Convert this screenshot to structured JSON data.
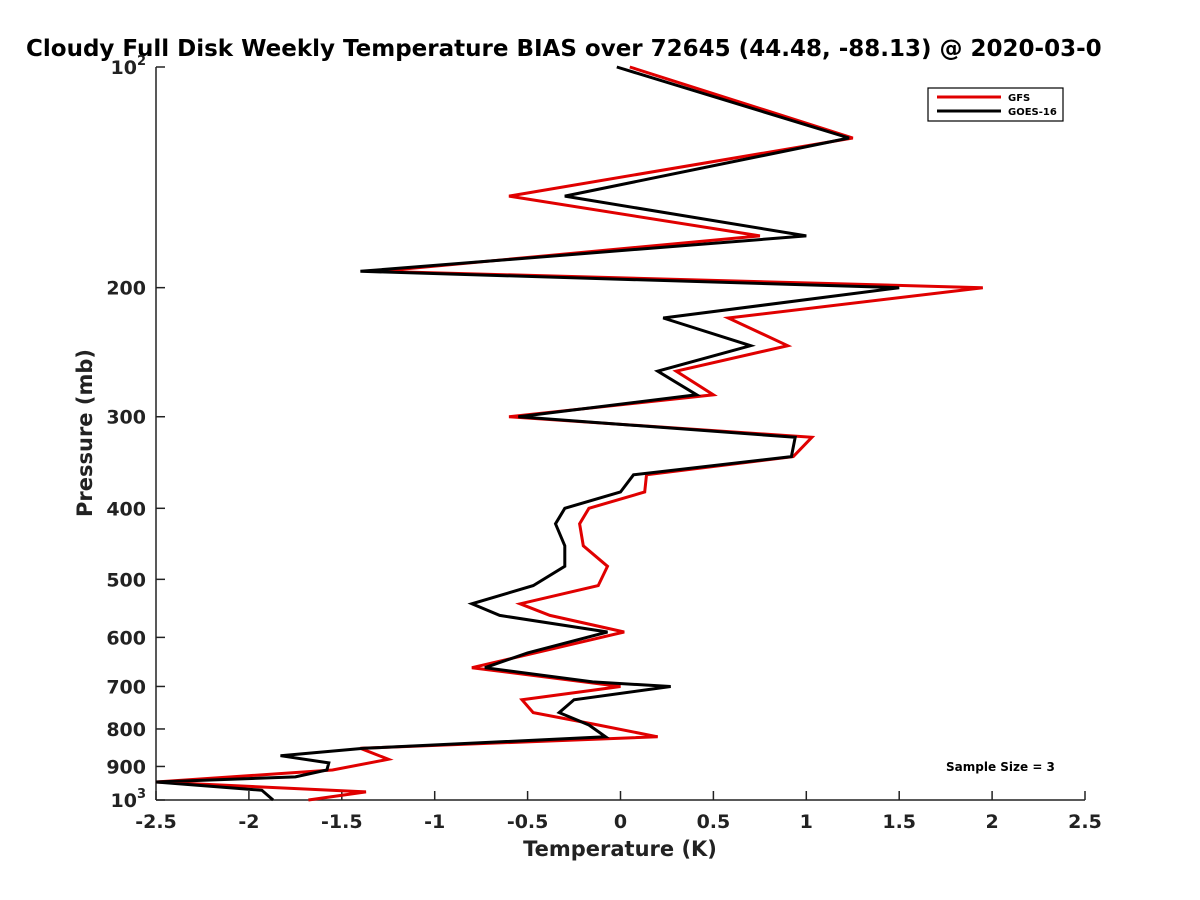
{
  "chart_data": {
    "type": "line",
    "title": "Cloudy Full Disk Weekly Temperature BIAS over 72645 (44.48, -88.13) @ 2020-03-0",
    "xlabel": "Temperature (K)",
    "ylabel": "Pressure (mb)",
    "xlim": [
      -2.5,
      2.5
    ],
    "ylim": [
      1000,
      100
    ],
    "y_scale": "log",
    "y_reversed": true,
    "grid": false,
    "legend_position": "top-right",
    "x_ticks": [
      "-2.5",
      "-2",
      "-1.5",
      "-1",
      "-0.5",
      "0",
      "0.5",
      "1",
      "1.5",
      "2",
      "2.5"
    ],
    "x_tick_values": [
      -2.5,
      -2,
      -1.5,
      -1,
      -0.5,
      0,
      0.5,
      1,
      1.5,
      2,
      2.5
    ],
    "y_ticks": [
      {
        "value": 100,
        "base": "10",
        "exp": "2"
      },
      {
        "value": 200,
        "label": "200"
      },
      {
        "value": 300,
        "label": "300"
      },
      {
        "value": 400,
        "label": "400"
      },
      {
        "value": 500,
        "label": "500"
      },
      {
        "value": 600,
        "label": "600"
      },
      {
        "value": 700,
        "label": "700"
      },
      {
        "value": 800,
        "label": "800"
      },
      {
        "value": 900,
        "label": "900"
      },
      {
        "value": 1000,
        "base": "10",
        "exp": "3"
      }
    ],
    "series": [
      {
        "name": "GFS",
        "color": "#e00000",
        "points": [
          [
            0.05,
            100
          ],
          [
            1.25,
            125
          ],
          [
            -0.6,
            150
          ],
          [
            0.75,
            170
          ],
          [
            -1.3,
            190
          ],
          [
            1.95,
            200
          ],
          [
            0.58,
            220
          ],
          [
            0.9,
            240
          ],
          [
            0.3,
            260
          ],
          [
            0.5,
            280
          ],
          [
            -0.6,
            300
          ],
          [
            1.03,
            320
          ],
          [
            0.93,
            340
          ],
          [
            0.14,
            360
          ],
          [
            0.13,
            380
          ],
          [
            -0.17,
            400
          ],
          [
            -0.22,
            420
          ],
          [
            -0.2,
            450
          ],
          [
            -0.07,
            480
          ],
          [
            -0.12,
            510
          ],
          [
            -0.54,
            540
          ],
          [
            -0.38,
            560
          ],
          [
            0.02,
            590
          ],
          [
            -0.46,
            630
          ],
          [
            -0.8,
            660
          ],
          [
            0.0,
            700
          ],
          [
            -0.53,
            730
          ],
          [
            -0.47,
            760
          ],
          [
            -0.12,
            790
          ],
          [
            0.2,
            820
          ],
          [
            -1.4,
            850
          ],
          [
            -1.25,
            880
          ],
          [
            -1.55,
            910
          ],
          [
            -2.5,
            945
          ],
          [
            -1.37,
            975
          ],
          [
            -1.68,
            1000
          ]
        ]
      },
      {
        "name": "GOES-16",
        "color": "#000000",
        "points": [
          [
            -0.02,
            100
          ],
          [
            1.23,
            125
          ],
          [
            -0.3,
            150
          ],
          [
            1.0,
            170
          ],
          [
            -1.4,
            190
          ],
          [
            1.5,
            200
          ],
          [
            0.23,
            220
          ],
          [
            0.7,
            240
          ],
          [
            0.2,
            260
          ],
          [
            0.41,
            280
          ],
          [
            -0.55,
            300
          ],
          [
            0.94,
            320
          ],
          [
            0.92,
            340
          ],
          [
            0.07,
            360
          ],
          [
            0.0,
            380
          ],
          [
            -0.3,
            400
          ],
          [
            -0.35,
            420
          ],
          [
            -0.3,
            450
          ],
          [
            -0.3,
            480
          ],
          [
            -0.47,
            510
          ],
          [
            -0.8,
            540
          ],
          [
            -0.65,
            560
          ],
          [
            -0.07,
            590
          ],
          [
            -0.5,
            630
          ],
          [
            -0.73,
            660
          ],
          [
            -0.15,
            690
          ],
          [
            0.27,
            700
          ],
          [
            -0.25,
            730
          ],
          [
            -0.33,
            760
          ],
          [
            -0.17,
            790
          ],
          [
            -0.08,
            820
          ],
          [
            -1.38,
            850
          ],
          [
            -1.83,
            870
          ],
          [
            -1.57,
            890
          ],
          [
            -1.58,
            910
          ],
          [
            -1.75,
            930
          ],
          [
            -2.5,
            945
          ],
          [
            -1.93,
            970
          ],
          [
            -1.87,
            1000
          ]
        ]
      }
    ],
    "annotation": "Sample Size = 3"
  }
}
